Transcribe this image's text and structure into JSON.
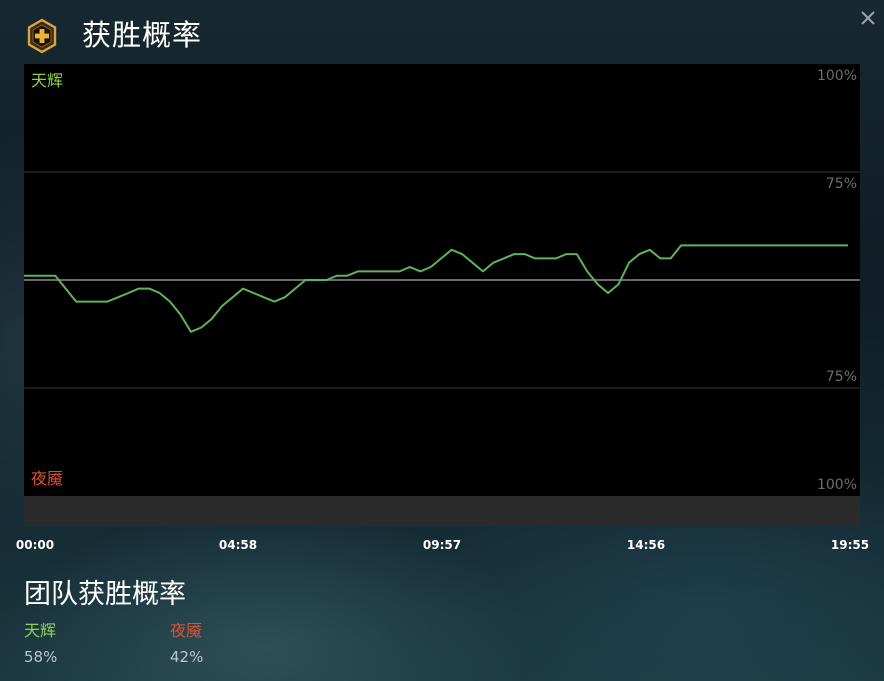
{
  "header": {
    "title": "获胜概率",
    "icon": "plus-shield-icon",
    "close_icon": "close-icon"
  },
  "chart_data": {
    "type": "line",
    "title": "",
    "top_side_label": "天辉",
    "bottom_side_label": "夜魇",
    "tick_labels": [
      "100%",
      "75%",
      "75%",
      "100%"
    ],
    "x_tick_labels": [
      "00:00",
      "04:58",
      "09:57",
      "14:56",
      "19:55"
    ],
    "x_range_minutes": [
      0,
      19.917
    ],
    "y_range": [
      -100,
      100
    ],
    "y_ticks": [
      100,
      50,
      0,
      -50,
      -100
    ],
    "grid": true,
    "colors": {
      "line": "#5fb35b",
      "radiant": "#8fd14c",
      "dire": "#e0522e"
    },
    "series": [
      {
        "x": [
          0,
          0.25,
          0.5,
          0.75,
          1.0,
          1.25,
          1.5,
          1.75,
          2.0,
          2.25,
          2.5,
          2.75,
          3.0,
          3.25,
          3.5,
          3.75,
          4.0,
          4.25,
          4.5,
          4.75,
          5.0,
          5.25,
          5.5,
          5.75,
          6.0,
          6.25,
          6.5,
          6.75,
          7.0,
          7.25,
          7.5,
          7.75,
          8.0,
          8.25,
          8.5,
          8.75,
          9.0,
          9.25,
          9.5,
          9.75,
          10.0,
          10.25,
          10.5,
          10.75,
          11.0,
          11.25,
          11.5,
          11.75,
          12.0,
          12.25,
          12.5,
          12.75,
          13.0,
          13.25,
          13.5,
          13.75,
          14.0,
          14.25,
          14.5,
          14.75,
          15.0,
          15.25,
          15.5,
          15.75,
          16.0,
          16.25,
          16.5,
          16.75,
          17.0,
          17.25,
          17.5,
          17.75,
          18.0,
          18.25,
          18.5,
          18.75,
          19.0,
          19.25,
          19.5,
          19.75
        ],
        "y": [
          2,
          2,
          2,
          2,
          -4,
          -10,
          -10,
          -10,
          -10,
          -8,
          -6,
          -4,
          -4,
          -6,
          -10,
          -16,
          -24,
          -22,
          -18,
          -12,
          -8,
          -4,
          -6,
          -8,
          -10,
          -8,
          -4,
          0,
          0,
          0,
          2,
          2,
          4,
          4,
          4,
          4,
          4,
          6,
          4,
          6,
          10,
          14,
          12,
          8,
          4,
          8,
          10,
          12,
          12,
          10,
          10,
          10,
          12,
          12,
          4,
          -2,
          -6,
          -2,
          8,
          12,
          14,
          10,
          10,
          16,
          16,
          16,
          16,
          16,
          16,
          16,
          16,
          16,
          16,
          16,
          16,
          16,
          16,
          16,
          16,
          16
        ]
      }
    ]
  },
  "team_summary": {
    "title": "团队获胜概率",
    "radiant_label": "天辉",
    "dire_label": "夜魇",
    "radiant_pct": "58%",
    "dire_pct": "42%"
  }
}
